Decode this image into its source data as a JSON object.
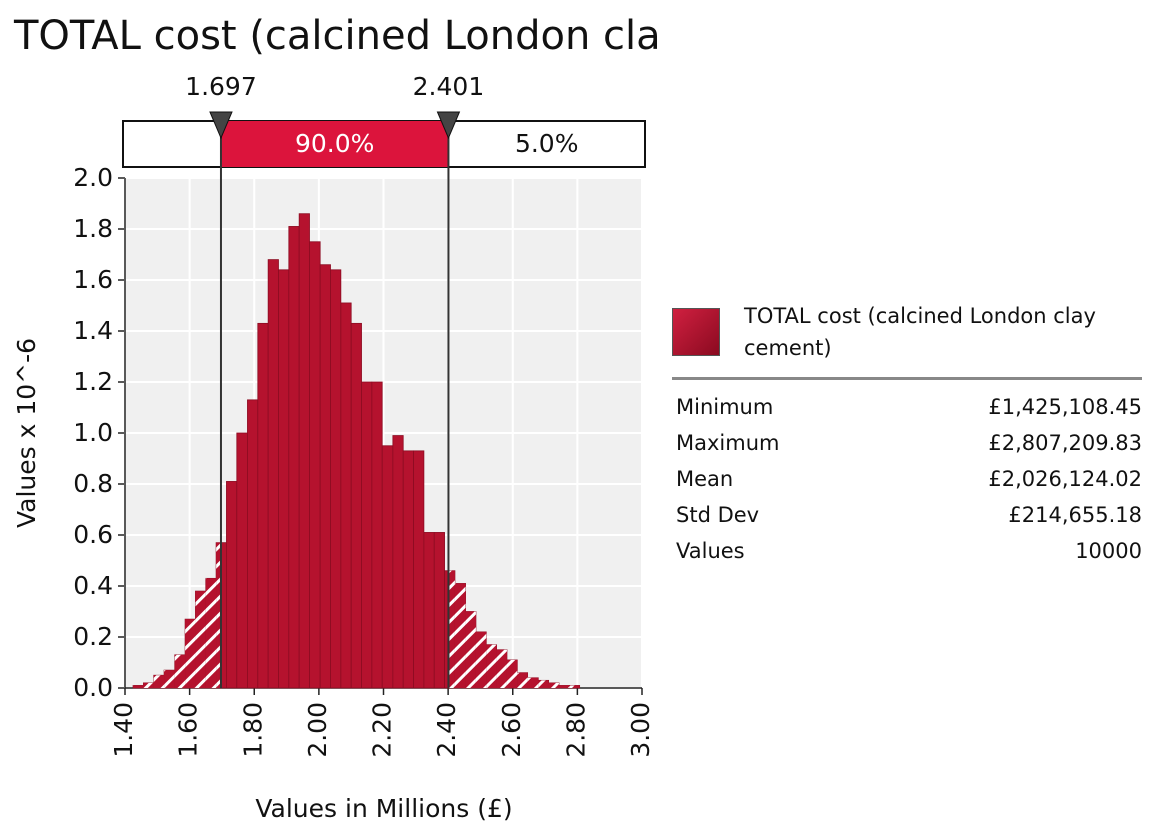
{
  "chart_data": {
    "type": "histogram",
    "title": "TOTAL cost (calcined London clay cement)",
    "x_label": "Values in Millions (£)",
    "y_label": "Values x 10^-6",
    "color": "#b5122e",
    "bins": [
      1.425,
      1.457,
      1.489,
      1.521,
      1.554,
      1.586,
      1.618,
      1.65,
      1.682,
      1.714,
      1.746,
      1.779,
      1.811,
      1.843,
      1.875,
      1.907,
      1.939,
      1.971,
      2.004,
      2.036,
      2.068,
      2.1,
      2.132,
      2.164,
      2.196,
      2.229,
      2.261,
      2.293,
      2.325,
      2.357,
      2.389,
      2.421,
      2.454,
      2.486,
      2.518,
      2.55,
      2.582,
      2.614,
      2.646,
      2.679,
      2.711,
      2.743,
      2.775,
      2.807
    ],
    "values": [
      0.01,
      0.02,
      0.05,
      0.07,
      0.13,
      0.27,
      0.38,
      0.43,
      0.57,
      0.81,
      1.0,
      1.13,
      1.43,
      1.68,
      1.64,
      1.81,
      1.86,
      1.75,
      1.66,
      1.64,
      1.51,
      1.43,
      1.2,
      1.2,
      0.95,
      0.99,
      0.93,
      0.93,
      0.61,
      0.61,
      0.46,
      0.41,
      0.3,
      0.22,
      0.17,
      0.15,
      0.11,
      0.06,
      0.04,
      0.03,
      0.02,
      0.01,
      0.01
    ],
    "xlim": [
      1.4,
      3.0
    ],
    "xticks": [
      {
        "value": 1.4,
        "label": "1.40"
      },
      {
        "value": 1.6,
        "label": "1.60"
      },
      {
        "value": 1.8,
        "label": "1.80"
      },
      {
        "value": 2.0,
        "label": "2.00"
      },
      {
        "value": 2.2,
        "label": "2.20"
      },
      {
        "value": 2.4,
        "label": "2.40"
      },
      {
        "value": 2.6,
        "label": "2.60"
      },
      {
        "value": 2.8,
        "label": "2.80"
      },
      {
        "value": 3.0,
        "label": "3.00"
      }
    ],
    "ylim": [
      0,
      2
    ],
    "yticks": [
      {
        "value": 0,
        "label": "0.0"
      },
      0.2,
      0.4,
      0.6,
      0.8,
      {
        "value": 1,
        "label": "1.0"
      },
      1.2,
      1.4,
      1.6,
      1.8,
      {
        "value": 2,
        "label": "2.0"
      }
    ],
    "grid": true,
    "markers": [
      1.697,
      2.401
    ],
    "band_values": [
      90,
      5
    ],
    "band_value_labels": [
      "90.0%",
      "5.0%"
    ],
    "legend": {
      "name": "TOTAL cost (calcined London clay cement)",
      "stats": [
        [
          "Minimum",
          "£1,425,108.45"
        ],
        [
          "Maximum",
          "£2,807,209.83"
        ],
        [
          "Mean",
          "£2,026,124.02"
        ],
        [
          "Std Dev",
          "£214,655.18"
        ],
        [
          "Values",
          10000
        ]
      ]
    }
  }
}
